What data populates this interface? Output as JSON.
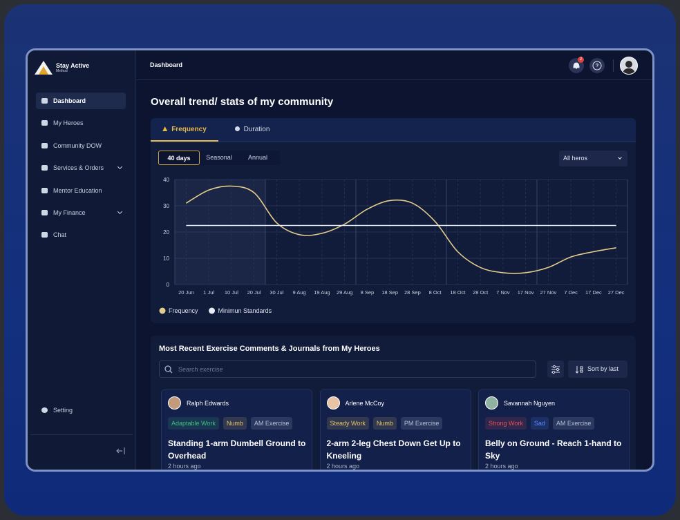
{
  "brand": {
    "name": "Stay Active",
    "sub": "Method"
  },
  "nav": [
    {
      "label": "Dashboard",
      "active": true
    },
    {
      "label": "My Heroes"
    },
    {
      "label": "Community DOW"
    },
    {
      "label": "Services & Orders",
      "has_submenu": true
    },
    {
      "label": "Mentor Education"
    },
    {
      "label": "My Finance",
      "has_submenu": true
    },
    {
      "label": "Chat"
    }
  ],
  "setting": "Setting",
  "header": {
    "title": "Dashboard",
    "notifications": "2"
  },
  "page_title": "Overall trend/ stats of my community",
  "tabs": [
    {
      "label": "Frequency",
      "active": true
    },
    {
      "label": "Duration"
    }
  ],
  "ranges": [
    {
      "label": "40 days",
      "active": true
    },
    {
      "label": "Seasonal"
    },
    {
      "label": "Annual"
    }
  ],
  "dropdown": "All heros",
  "chart_data": {
    "type": "line",
    "categories": [
      "20 Jun",
      "1 Jul",
      "10 Jul",
      "20 Jul",
      "30 Jul",
      "9 Aug",
      "19 Aug",
      "29 Aug",
      "8 Sep",
      "18 Sep",
      "28 Sep",
      "8 Oct",
      "18 Oct",
      "28 Oct",
      "7 Nov",
      "17 Nov",
      "27 Nov",
      "7 Dec",
      "17 Dec",
      "27 Dec"
    ],
    "series": [
      {
        "name": "Frequency",
        "color": "#e4cd8a",
        "values": [
          31,
          36,
          37.5,
          35,
          23.5,
          19,
          19.5,
          23,
          28.7,
          32,
          31,
          24,
          12.5,
          6.5,
          4.5,
          4.5,
          6.5,
          10.5,
          12.5,
          14
        ]
      },
      {
        "name": "Minimun Standards",
        "color": "#e8ecf6",
        "values": [
          22.5,
          22.5,
          22.5,
          22.5,
          22.5,
          22.5,
          22.5,
          22.5,
          22.5,
          22.5,
          22.5,
          22.5,
          22.5,
          22.5,
          22.5,
          22.5,
          22.5,
          22.5,
          22.5,
          22.5
        ]
      }
    ],
    "ylim": [
      0,
      40
    ],
    "yticks": [
      0,
      10,
      20,
      30,
      40
    ],
    "grid": true,
    "legend": "bottom-left"
  },
  "comments": {
    "title": "Most Recent Exercise Comments & Journals from My Heroes",
    "search_placeholder": "Search exercise",
    "sort": "Sort by last",
    "cards": [
      {
        "name": "Ralph Edwards",
        "tags": [
          {
            "text": "Adaptable Work",
            "color": "#3fbf7f"
          },
          {
            "text": "Numb",
            "color": "#e0c46a"
          },
          {
            "text": "AM Exercise",
            "color": "#b8c0d6"
          }
        ],
        "title": "Standing 1-arm Dumbell Ground to Overhead",
        "time": "2 hours ago"
      },
      {
        "name": "Arlene McCoy",
        "tags": [
          {
            "text": "Steady Work",
            "color": "#e0c46a"
          },
          {
            "text": "Numb",
            "color": "#e0c46a"
          },
          {
            "text": "PM Exercise",
            "color": "#b8c0d6"
          }
        ],
        "title": "2-arm 2-leg Chest Down Get Up to Kneeling",
        "time": "2 hours ago"
      },
      {
        "name": "Savannah Nguyen",
        "tags": [
          {
            "text": "Strong Work",
            "color": "#e0525a"
          },
          {
            "text": "Sad",
            "color": "#5a8cff"
          },
          {
            "text": "AM Exercise",
            "color": "#b8c0d6"
          }
        ],
        "title": "Belly on Ground - Reach 1-hand to Sky",
        "time": "2 hours ago"
      }
    ]
  }
}
